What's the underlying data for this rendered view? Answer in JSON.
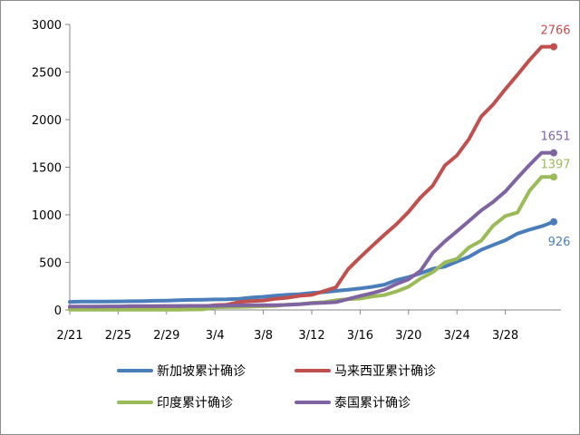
{
  "chart_data": {
    "type": "line",
    "title": "",
    "xlabel": "",
    "ylabel": "",
    "ylim": [
      0,
      3000
    ],
    "yticks": [
      0,
      500,
      1000,
      1500,
      2000,
      2500,
      3000
    ],
    "xticks": [
      "2/21",
      "2/25",
      "2/29",
      "3/4",
      "3/8",
      "3/12",
      "3/16",
      "3/20",
      "3/24",
      "3/28"
    ],
    "x": [
      "2/21",
      "2/22",
      "2/23",
      "2/24",
      "2/25",
      "2/26",
      "2/27",
      "2/28",
      "2/29",
      "3/1",
      "3/2",
      "3/3",
      "3/4",
      "3/5",
      "3/6",
      "3/7",
      "3/8",
      "3/9",
      "3/10",
      "3/11",
      "3/12",
      "3/13",
      "3/14",
      "3/15",
      "3/16",
      "3/17",
      "3/18",
      "3/19",
      "3/20",
      "3/21",
      "3/22",
      "3/23",
      "3/24",
      "3/25",
      "3/26",
      "3/27",
      "3/28",
      "3/29",
      "3/30",
      "3/31",
      "4/1"
    ],
    "grid": false,
    "legend_position": "bottom",
    "series": [
      {
        "name": "新加坡累计确诊",
        "color": "#4a7ebb",
        "end_label": "926",
        "values": [
          85,
          89,
          89,
          89,
          90,
          91,
          93,
          96,
          98,
          102,
          106,
          108,
          110,
          112,
          117,
          130,
          138,
          150,
          160,
          166,
          178,
          187,
          200,
          212,
          226,
          243,
          266,
          313,
          345,
          385,
          432,
          455,
          509,
          558,
          631,
          683,
          732,
          802,
          844,
          879,
          926
        ]
      },
      {
        "name": "马来西亚累计确诊",
        "color": "#c0504d",
        "end_label": "2766",
        "values": [
          22,
          22,
          22,
          22,
          22,
          22,
          22,
          23,
          25,
          29,
          29,
          36,
          50,
          55,
          83,
          93,
          99,
          117,
          129,
          149,
          158,
          197,
          238,
          428,
          553,
          673,
          790,
          900,
          1030,
          1183,
          1306,
          1518,
          1624,
          1796,
          2031,
          2161,
          2320,
          2470,
          2626,
          2766,
          2766
        ]
      },
      {
        "name": "印度累计确诊",
        "color": "#9bbb59",
        "end_label": "1397",
        "values": [
          3,
          3,
          3,
          3,
          3,
          3,
          3,
          3,
          3,
          3,
          5,
          6,
          28,
          30,
          31,
          34,
          39,
          43,
          56,
          62,
          73,
          82,
          102,
          113,
          119,
          142,
          156,
          194,
          244,
          330,
          396,
          499,
          536,
          657,
          727,
          887,
          987,
          1024,
          1251,
          1397,
          1397
        ]
      },
      {
        "name": "泰国累计确诊",
        "color": "#8064a2",
        "end_label": "1651",
        "values": [
          35,
          35,
          35,
          37,
          37,
          40,
          40,
          41,
          42,
          42,
          43,
          43,
          43,
          47,
          48,
          50,
          50,
          50,
          53,
          59,
          70,
          75,
          82,
          114,
          147,
          177,
          212,
          272,
          322,
          411,
          599,
          721,
          827,
          934,
          1045,
          1136,
          1245,
          1388,
          1524,
          1651,
          1651
        ]
      }
    ]
  }
}
